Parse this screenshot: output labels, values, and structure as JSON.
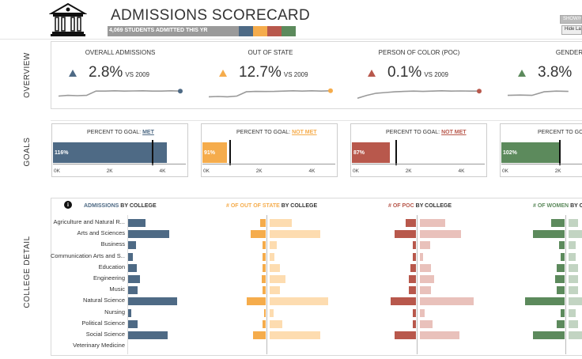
{
  "header": {
    "title": "ADMISSIONS SCORECARD",
    "admitted_label": "4,069 STUDENTS ADMITTED THIS YR",
    "show_hide_label": "SHOW/H",
    "hide_label": "Hide La"
  },
  "sections": {
    "overview": "OVERVIEW",
    "goals": "GOALS",
    "college_detail": "COLLEGE  DETAIL"
  },
  "colors": {
    "blue": "#4e6a85",
    "orange": "#f5ac4c",
    "red": "#b8584c",
    "green": "#5c8a5c",
    "grey": "#9a9a9a"
  },
  "kpis": [
    {
      "title": "OVERALL ADMISSIONS",
      "value": "2.8%",
      "vs": "VS 2009",
      "color": "#4e6a85",
      "spark": [
        0.25,
        0.3,
        0.28,
        0.3,
        0.6,
        0.6,
        0.62,
        0.6,
        0.61,
        0.62,
        0.6,
        0.6,
        0.62,
        0.6
      ]
    },
    {
      "title": "OUT OF STATE",
      "value": "12.7%",
      "vs": "VS 2009",
      "color": "#f5ac4c",
      "spark": [
        0.2,
        0.22,
        0.2,
        0.25,
        0.55,
        0.58,
        0.57,
        0.58,
        0.6,
        0.62,
        0.6,
        0.62,
        0.6,
        0.62
      ]
    },
    {
      "title": "PERSON OF COLOR (POC)",
      "value": "0.1%",
      "vs": "VS 2009",
      "color": "#b8584c",
      "spark": [
        0.1,
        0.3,
        0.45,
        0.5,
        0.55,
        0.58,
        0.6,
        0.58,
        0.6,
        0.62,
        0.6,
        0.61,
        0.6,
        0.6
      ]
    },
    {
      "title": "GENDER",
      "value": "3.8%",
      "vs": "",
      "color": "#5c8a5c",
      "spark": [
        0.3,
        0.32,
        0.3,
        0.55,
        0.6,
        0.58
      ]
    }
  ],
  "goals": [
    {
      "title": "PERCENT TO GOAL:",
      "status": "MET",
      "pct_label": "116%",
      "value": 4069,
      "goal": 3510,
      "color": "#4e6a85",
      "ticks": [
        "0K",
        "2K",
        "4K"
      ]
    },
    {
      "title": "PERCENT TO GOAL:",
      "status": "NOT MET",
      "pct_label": "91%",
      "value": 880,
      "goal": 967,
      "color": "#f5ac4c",
      "ticks": [
        "0K",
        "2K",
        "4K"
      ]
    },
    {
      "title": "PERCENT TO GOAL:",
      "status": "NOT MET",
      "pct_label": "87%",
      "value": 1340,
      "goal": 1540,
      "color": "#b8584c",
      "ticks": [
        "0K",
        "2K",
        "4K"
      ]
    },
    {
      "title": "PERCENT TO GOAL:",
      "status": "",
      "pct_label": "102%",
      "value": 2100,
      "goal": 2060,
      "color": "#5c8a5c",
      "ticks": [
        "0K",
        "2K"
      ]
    }
  ],
  "college_detail": {
    "info_icon": "info-icon",
    "headers": [
      {
        "highlight": "ADMISSIONS",
        "rest": " BY COLLEGE",
        "color": "#4e6a85"
      },
      {
        "highlight": "# OF OUT OF STATE",
        "rest": " BY COLLEGE",
        "color": "#f5ac4c"
      },
      {
        "highlight": "# OF POC",
        "rest": " BY COLLEGE",
        "color": "#b8584c"
      },
      {
        "highlight": "# OF WOMEN",
        "rest": " BY C",
        "color": "#5c8a5c"
      }
    ],
    "colleges": [
      "Agriculture and Natural R...",
      "Arts and Sciences",
      "Business",
      "Communication Arts and S...",
      "Education",
      "Engineering",
      "Music",
      "Natural Science",
      "Nursing",
      "Political Science",
      "Social Science",
      "Veterinary Medicine"
    ],
    "admissions": [
      22,
      52,
      10,
      6,
      11,
      15,
      12,
      62,
      4,
      12,
      50,
      0
    ],
    "out_of_state": [
      [
        0.22,
        0.3
      ],
      [
        0.62,
        0.7
      ],
      [
        0.12,
        0.1
      ],
      [
        0.12,
        0.07
      ],
      [
        0.15,
        0.14
      ],
      [
        0.18,
        0.22
      ],
      [
        0.15,
        0.14
      ],
      [
        0.8,
        0.8
      ],
      [
        0.08,
        0.05
      ],
      [
        0.12,
        0.17
      ],
      [
        0.55,
        0.7
      ],
      [
        0,
        0
      ]
    ],
    "poc": [
      [
        0.3,
        0.45
      ],
      [
        0.6,
        0.72
      ],
      [
        0.1,
        0.18
      ],
      [
        0.1,
        0.06
      ],
      [
        0.15,
        0.2
      ],
      [
        0.2,
        0.25
      ],
      [
        0.2,
        0.2
      ],
      [
        0.72,
        0.95
      ],
      [
        0.08,
        0.08
      ],
      [
        0.1,
        0.22
      ],
      [
        0.6,
        0.7
      ],
      [
        0,
        0
      ]
    ],
    "women": [
      [
        0.35,
        0.4
      ],
      [
        0.8,
        0.7
      ],
      [
        0.15,
        0.3
      ],
      [
        0.1,
        0.3
      ],
      [
        0.2,
        0.4
      ],
      [
        0.25,
        0.4
      ],
      [
        0.2,
        0.4
      ],
      [
        1.0,
        0.6
      ],
      [
        0.1,
        0.3
      ],
      [
        0.2,
        0.4
      ],
      [
        0.8,
        0.6
      ],
      [
        0,
        0
      ]
    ]
  }
}
